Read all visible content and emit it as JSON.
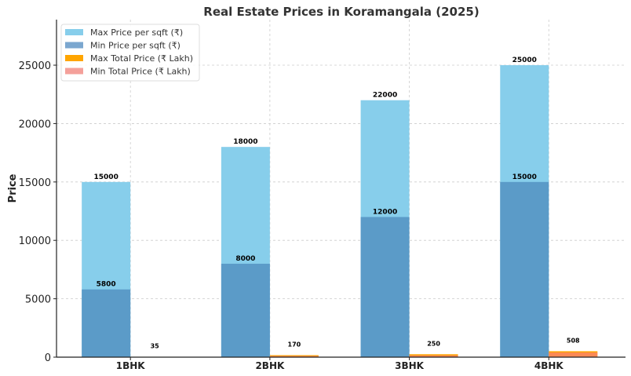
{
  "chart_data": {
    "type": "bar",
    "title": "Real Estate Prices in Koramangala (2025)",
    "xlabel": "",
    "ylabel": "Price",
    "ylim": [
      0,
      28900
    ],
    "yticks": [
      0,
      5000,
      10000,
      15000,
      20000,
      25000
    ],
    "grid": true,
    "legend_position": "top-left",
    "categories": [
      "1BHK",
      "2BHK",
      "3BHK",
      "4BHK"
    ],
    "series": [
      {
        "name": "Max Price per sqft (₹)",
        "color": "#87CEEB",
        "values": [
          15000,
          18000,
          22000,
          25000
        ],
        "group": "sqft"
      },
      {
        "name": "Min Price per sqft (₹)",
        "color": "#5B9BC8",
        "values": [
          5800,
          8000,
          12000,
          15000
        ],
        "group": "sqft"
      },
      {
        "name": "Max Total Price (₹ Lakh)",
        "color": "#FFA500",
        "values": [
          35,
          170,
          250,
          508
        ],
        "group": "total"
      },
      {
        "name": "Min Total Price (₹ Lakh)",
        "color": "#FA8072",
        "values": [
          20,
          100,
          150,
          400
        ],
        "group": "total"
      }
    ],
    "data_labels": {
      "sqft_max": [
        "15000",
        "18000",
        "22000",
        "25000"
      ],
      "sqft_min": [
        "5800",
        "8000",
        "12000",
        "15000"
      ],
      "total": [
        "35",
        "170",
        "250",
        "508"
      ]
    }
  }
}
